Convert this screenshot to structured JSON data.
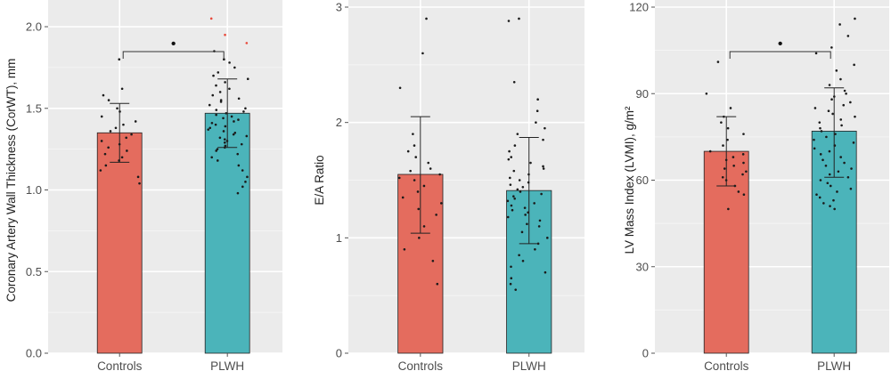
{
  "chart_data": [
    {
      "type": "bar",
      "categories": [
        "Controls",
        "PLWH"
      ],
      "values": [
        1.35,
        1.47
      ],
      "error_low": [
        1.17,
        1.26
      ],
      "error_high": [
        1.53,
        1.68
      ],
      "ylabel": "Coronary Artery Wall Thickness (CorWT), mm",
      "ylim": [
        0,
        2.12
      ],
      "yticks": [
        "0.0",
        "0.5",
        "1.0",
        "1.5",
        "2.0"
      ],
      "ytick_values": [
        0,
        0.5,
        1.0,
        1.5,
        2.0
      ],
      "significance": "•",
      "bar_colors": [
        "#E46C5E",
        "#4BB4BA"
      ],
      "grid": true,
      "points": [
        [
          1.8,
          1.62,
          1.58,
          1.55,
          1.5,
          1.48,
          1.45,
          1.42,
          1.4,
          1.38,
          1.36,
          1.34,
          1.32,
          1.3,
          1.28,
          1.26,
          1.24,
          1.22,
          1.2,
          1.18,
          1.15,
          1.12,
          1.08,
          1.04
        ],
        [
          2.05,
          1.95,
          1.9,
          1.85,
          1.8,
          1.78,
          1.75,
          1.72,
          1.7,
          1.68,
          1.66,
          1.64,
          1.62,
          1.6,
          1.58,
          1.56,
          1.55,
          1.54,
          1.52,
          1.5,
          1.49,
          1.48,
          1.47,
          1.46,
          1.45,
          1.44,
          1.43,
          1.42,
          1.41,
          1.4,
          1.39,
          1.38,
          1.37,
          1.36,
          1.35,
          1.34,
          1.33,
          1.32,
          1.31,
          1.3,
          1.29,
          1.28,
          1.27,
          1.26,
          1.25,
          1.24,
          1.22,
          1.2,
          1.18,
          1.15,
          1.12,
          1.08,
          1.05,
          1.02,
          0.98
        ]
      ]
    },
    {
      "type": "bar",
      "categories": [
        "Controls",
        "PLWH"
      ],
      "values": [
        1.55,
        1.41
      ],
      "error_low": [
        1.04,
        0.95
      ],
      "error_high": [
        2.05,
        1.87
      ],
      "ylabel": "E/A Ratio",
      "ylim": [
        0,
        3.0
      ],
      "yticks": [
        "0",
        "1",
        "2",
        "3"
      ],
      "ytick_values": [
        0,
        1,
        2,
        3
      ],
      "significance": "",
      "bar_colors": [
        "#E46C5E",
        "#4BB4BA"
      ],
      "grid": true,
      "points": [
        [
          2.9,
          2.6,
          2.3,
          1.9,
          1.8,
          1.75,
          1.7,
          1.65,
          1.6,
          1.58,
          1.55,
          1.52,
          1.5,
          1.45,
          1.4,
          1.35,
          1.3,
          1.25,
          1.2,
          1.1,
          1.0,
          0.9,
          0.8,
          0.6
        ],
        [
          2.9,
          2.88,
          2.35,
          2.2,
          2.1,
          2.0,
          1.95,
          1.9,
          1.85,
          1.8,
          1.75,
          1.7,
          1.68,
          1.65,
          1.62,
          1.6,
          1.58,
          1.55,
          1.52,
          1.5,
          1.48,
          1.46,
          1.44,
          1.42,
          1.4,
          1.38,
          1.36,
          1.34,
          1.32,
          1.3,
          1.28,
          1.26,
          1.24,
          1.22,
          1.2,
          1.18,
          1.15,
          1.12,
          1.1,
          1.05,
          1.0,
          0.95,
          0.9,
          0.85,
          0.8,
          0.75,
          0.7,
          0.65,
          0.6,
          0.55
        ]
      ]
    },
    {
      "type": "bar",
      "categories": [
        "Controls",
        "PLWH"
      ],
      "values": [
        70,
        77
      ],
      "error_low": [
        58,
        61
      ],
      "error_high": [
        82,
        92
      ],
      "ylabel": "LV Mass Index (LVMI), g/m²",
      "ylim": [
        0,
        120
      ],
      "yticks": [
        "0",
        "30",
        "60",
        "90",
        "120"
      ],
      "ytick_values": [
        0,
        30,
        60,
        90,
        120
      ],
      "significance": "•",
      "bar_colors": [
        "#E46C5E",
        "#4BB4BA"
      ],
      "grid": true,
      "points": [
        [
          101,
          90,
          85,
          82,
          80,
          78,
          76,
          74,
          72,
          70,
          69,
          68,
          67,
          66,
          65,
          64,
          63,
          62,
          61,
          60,
          58,
          56,
          55,
          50
        ],
        [
          116,
          114,
          110,
          106,
          104,
          100,
          98,
          95,
          93,
          91,
          90,
          89,
          88,
          87,
          86,
          85,
          84,
          83,
          82,
          81,
          80,
          79,
          78,
          77,
          76,
          75,
          74,
          73,
          72,
          71,
          70,
          69,
          68,
          67,
          66,
          65,
          64,
          63,
          62,
          61,
          60,
          59,
          58,
          57,
          56,
          55,
          54,
          53,
          52,
          51,
          50
        ]
      ]
    }
  ]
}
